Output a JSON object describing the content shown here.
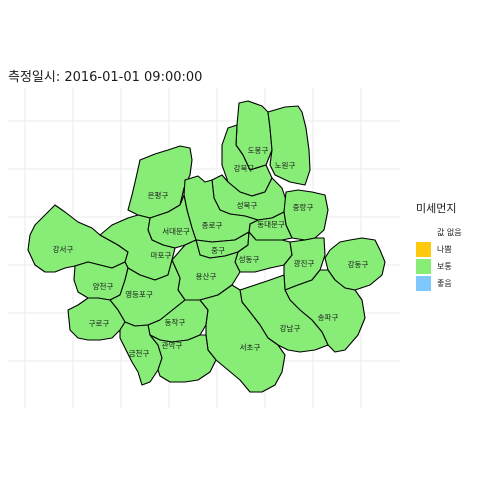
{
  "title": "측정일시: 2016-01-01 09:00:00",
  "legend": {
    "title": "미세먼지",
    "items": [
      {
        "label": "값 없음",
        "color": "#ffffff"
      },
      {
        "label": "나쁨",
        "color": "#ffc90e"
      },
      {
        "label": "보통",
        "color": "#87ed77"
      },
      {
        "label": "좋음",
        "color": "#7ec8ff"
      }
    ]
  },
  "districts": [
    {
      "name": "도봉구",
      "status": "보통"
    },
    {
      "name": "노원구",
      "status": "보통"
    },
    {
      "name": "강북구",
      "status": "보통"
    },
    {
      "name": "은평구",
      "status": "보통"
    },
    {
      "name": "성북구",
      "status": "보통"
    },
    {
      "name": "중랑구",
      "status": "보통"
    },
    {
      "name": "동대문구",
      "status": "보통"
    },
    {
      "name": "종로구",
      "status": "보통"
    },
    {
      "name": "서대문구",
      "status": "보통"
    },
    {
      "name": "강서구",
      "status": "보통"
    },
    {
      "name": "마포구",
      "status": "보통"
    },
    {
      "name": "중구",
      "status": "보통"
    },
    {
      "name": "성동구",
      "status": "보통"
    },
    {
      "name": "광진구",
      "status": "보통"
    },
    {
      "name": "강동구",
      "status": "보통"
    },
    {
      "name": "용산구",
      "status": "보통"
    },
    {
      "name": "양천구",
      "status": "보통"
    },
    {
      "name": "영등포구",
      "status": "보통"
    },
    {
      "name": "구로구",
      "status": "보통"
    },
    {
      "name": "동작구",
      "status": "보통"
    },
    {
      "name": "송파구",
      "status": "보통"
    },
    {
      "name": "강남구",
      "status": "보통"
    },
    {
      "name": "서초구",
      "status": "보통"
    },
    {
      "name": "금천구",
      "status": "보통"
    },
    {
      "name": "관악구",
      "status": "보통"
    }
  ]
}
